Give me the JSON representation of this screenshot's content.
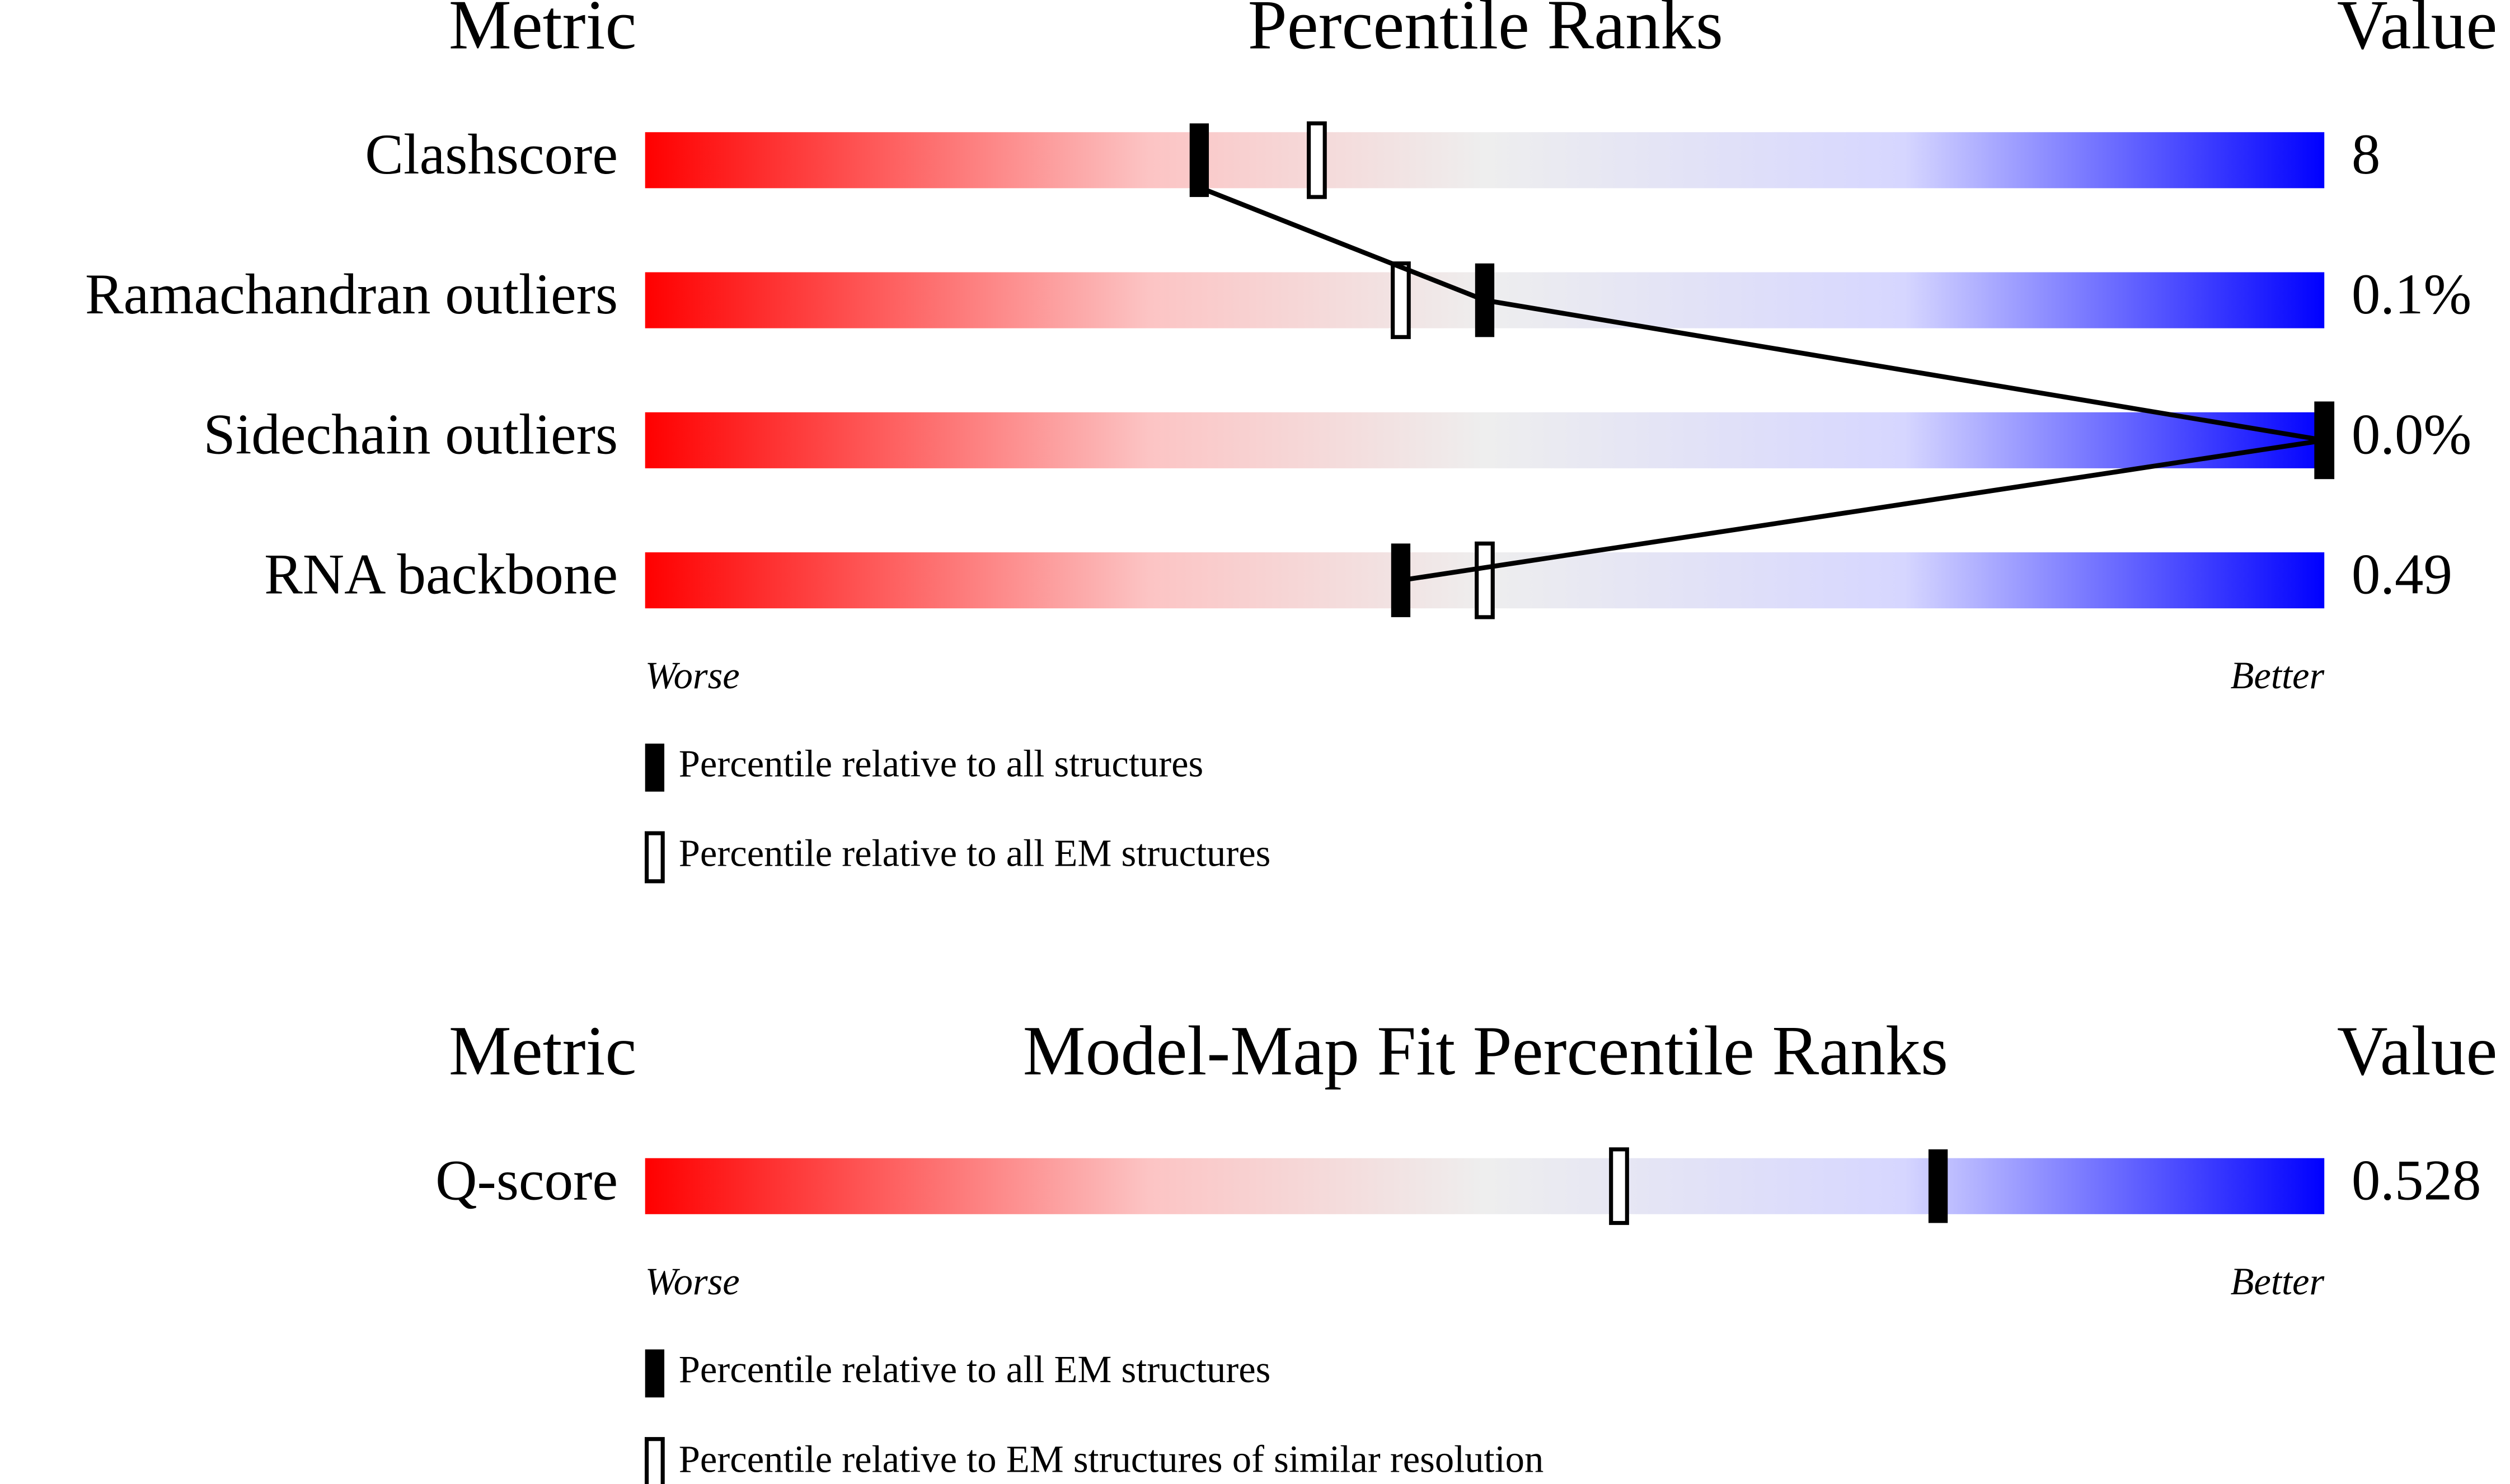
{
  "chart_data": [
    {
      "type": "slider",
      "title": "Percentile Ranks",
      "metric_header": "Metric",
      "value_header": "Value",
      "categories": [
        "Clashscore",
        "Ramachandran outliers",
        "Sidechain outliers",
        "RNA backbone"
      ],
      "metric_values": [
        "8",
        "0.1%",
        "0.0%",
        "0.49"
      ],
      "series": [
        {
          "name": "Percentile relative to all structures",
          "color": "#000000",
          "values": [
            33,
            50,
            100,
            45
          ]
        },
        {
          "name": "Percentile relative to all EM structures",
          "color": "#ffffff",
          "values": [
            40,
            45,
            100,
            50
          ]
        }
      ],
      "xlim": [
        0,
        100
      ],
      "worse_label": "Worse",
      "better_label": "Better"
    },
    {
      "type": "slider",
      "title": "Model-Map Fit Percentile Ranks",
      "metric_header": "Metric",
      "value_header": "Value",
      "categories": [
        "Q-score"
      ],
      "metric_values": [
        "0.528"
      ],
      "series": [
        {
          "name": "Percentile relative to all EM structures",
          "color": "#000000",
          "values": [
            77
          ]
        },
        {
          "name": "Percentile relative to EM structures of similar resolution",
          "color": "#ffffff",
          "values": [
            58
          ]
        }
      ],
      "xlim": [
        0,
        100
      ],
      "worse_label": "Worse",
      "better_label": "Better"
    }
  ]
}
